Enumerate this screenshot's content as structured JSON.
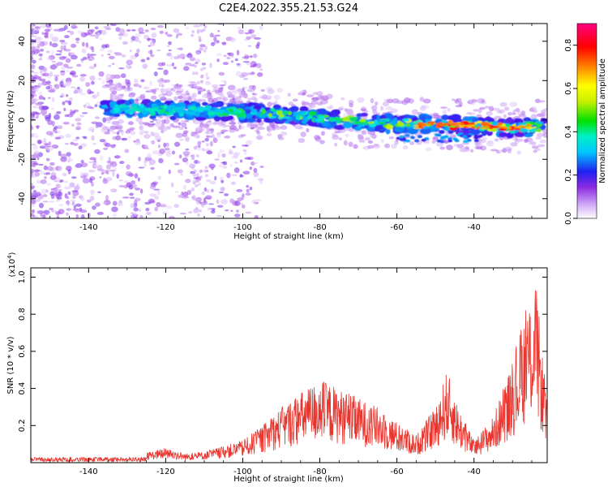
{
  "figure_title": "C2E4.2022.355.21.53.G24",
  "chart_data": [
    {
      "type": "heatmap",
      "xlabel": "Height of straight line (km)",
      "ylabel": "Frequency (Hz)",
      "xlim": [
        -155,
        -21
      ],
      "ylim": [
        -50,
        49
      ],
      "x_ticks": [
        -140,
        -120,
        -100,
        -80,
        -60,
        -40
      ],
      "y_ticks": [
        -40,
        -20,
        0,
        20,
        40
      ],
      "colorbar": {
        "label": "Normalized spectral amplitude",
        "ticks": [
          0.0,
          0.2,
          0.4,
          0.6,
          0.8
        ],
        "range": [
          0,
          0.9
        ]
      },
      "ridge_line": {
        "x": [
          -135,
          -120,
          -110,
          -100,
          -90,
          -80,
          -70,
          -60,
          -50,
          -40,
          -30,
          -21
        ],
        "frequency": [
          6,
          5,
          4.5,
          4,
          3,
          1,
          -1,
          -2,
          -2,
          -3,
          -4,
          -3
        ],
        "peak_amplitude": [
          0.35,
          0.4,
          0.35,
          0.45,
          0.5,
          0.45,
          0.5,
          0.55,
          0.8,
          0.75,
          0.8,
          0.5
        ]
      }
    },
    {
      "type": "line",
      "xlabel": "Height of straight line (km)",
      "ylabel": "SNR (10 * v/v)",
      "y_multiplier": "(x10",
      "y_multiplier_exp": "4",
      "y_multiplier_close": ")",
      "xlim": [
        -155,
        -21
      ],
      "ylim": [
        0,
        1.05
      ],
      "x_ticks": [
        -140,
        -120,
        -100,
        -80,
        -60,
        -40
      ],
      "y_ticks": [
        0.2,
        0.4,
        0.6,
        0.8,
        1.0
      ],
      "series": [
        {
          "color": "#e8352e",
          "envelope_x": [
            -155,
            -140,
            -130,
            -120,
            -115,
            -110,
            -100,
            -95,
            -90,
            -85,
            -80,
            -75,
            -70,
            -65,
            -60,
            -55,
            -50,
            -47,
            -44,
            -40,
            -35,
            -30,
            -27,
            -24,
            -21
          ],
          "envelope_y": [
            0.02,
            0.02,
            0.03,
            0.08,
            0.05,
            0.06,
            0.12,
            0.2,
            0.3,
            0.38,
            0.45,
            0.4,
            0.35,
            0.3,
            0.22,
            0.15,
            0.3,
            0.5,
            0.3,
            0.12,
            0.25,
            0.55,
            0.8,
            1.0,
            0.3
          ]
        }
      ]
    }
  ]
}
